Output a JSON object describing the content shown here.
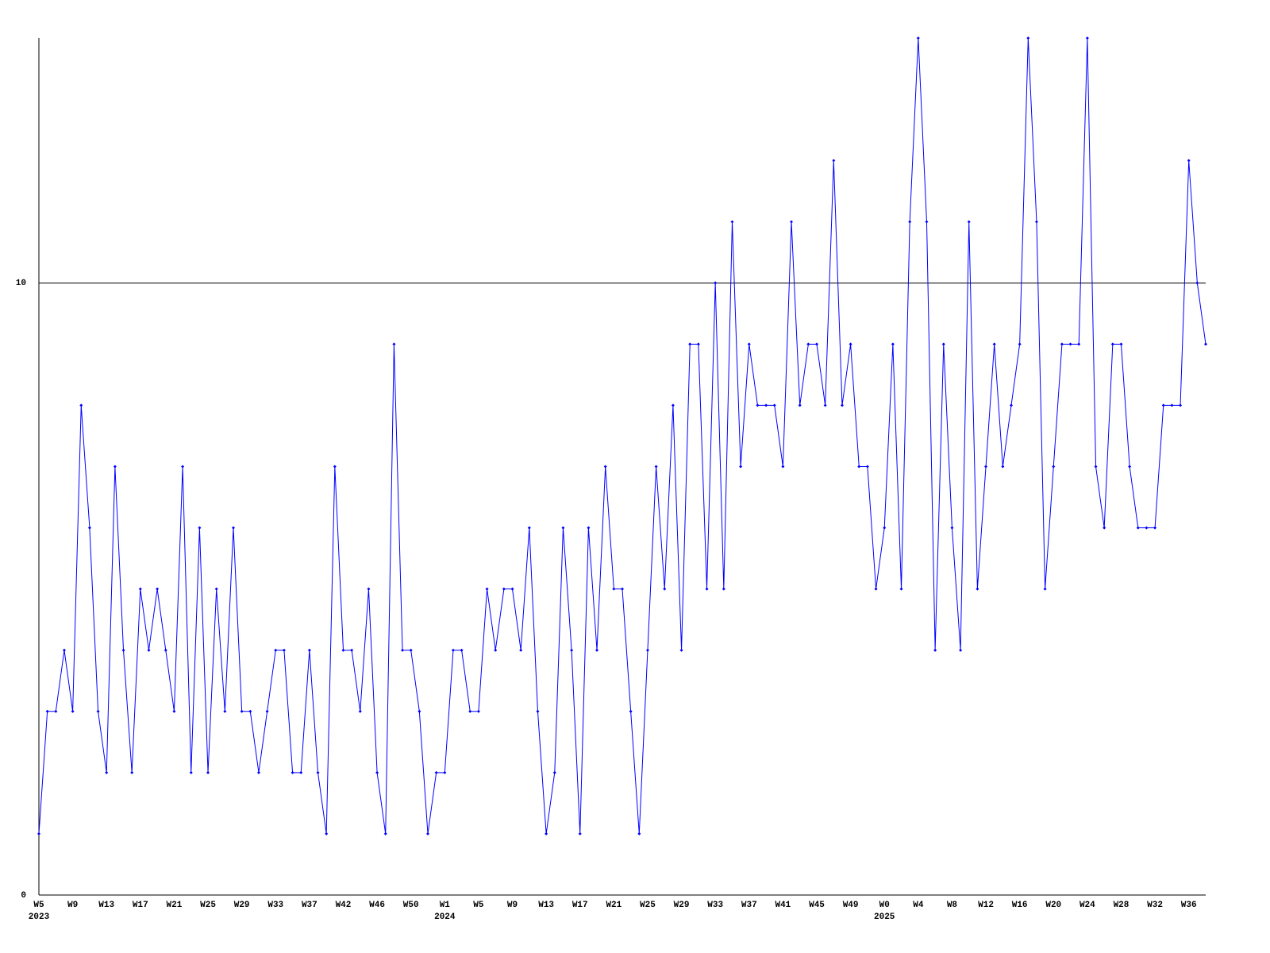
{
  "chart_data": {
    "type": "line",
    "categories": [
      "W5",
      null,
      null,
      null,
      "W9",
      null,
      null,
      null,
      "W13",
      null,
      null,
      null,
      "W17",
      null,
      null,
      null,
      "W21",
      null,
      null,
      null,
      "W25",
      null,
      null,
      null,
      "W29",
      null,
      null,
      null,
      "W33",
      null,
      null,
      null,
      "W37",
      null,
      null,
      null,
      "W42",
      null,
      null,
      null,
      "W46",
      null,
      null,
      null,
      "W50",
      null,
      null,
      null,
      "W1",
      null,
      null,
      null,
      "W5",
      null,
      null,
      null,
      "W9",
      null,
      null,
      null,
      "W13",
      null,
      null,
      null,
      "W17",
      null,
      null,
      null,
      "W21",
      null,
      null,
      null,
      "W25",
      null,
      null,
      null,
      "W29",
      null,
      null,
      null,
      "W33",
      null,
      null,
      null,
      "W37",
      null,
      null,
      null,
      "W41",
      null,
      null,
      null,
      "W45",
      null,
      null,
      null,
      "W49",
      null,
      null,
      null,
      "W0",
      null,
      null,
      null,
      "W4",
      null,
      null,
      null,
      "W8",
      null,
      null,
      null,
      "W12",
      null,
      null,
      null,
      "W16",
      null,
      null,
      null,
      "W20",
      null,
      null,
      null,
      "W24",
      null,
      null,
      null,
      "W28",
      null,
      null,
      null,
      "W32",
      null,
      null,
      null,
      "W36",
      null,
      null
    ],
    "years": [
      "2023",
      null,
      null,
      null,
      null,
      null,
      null,
      null,
      null,
      null,
      null,
      null,
      null,
      null,
      null,
      null,
      null,
      null,
      null,
      null,
      null,
      null,
      null,
      null,
      null,
      null,
      null,
      null,
      null,
      null,
      null,
      null,
      null,
      null,
      null,
      null,
      null,
      null,
      null,
      null,
      null,
      null,
      null,
      null,
      null,
      null,
      null,
      null,
      "2024",
      null,
      null,
      null,
      null,
      null,
      null,
      null,
      null,
      null,
      null,
      null,
      null,
      null,
      null,
      null,
      null,
      null,
      null,
      null,
      null,
      null,
      null,
      null,
      null,
      null,
      null,
      null,
      null,
      null,
      null,
      null,
      null,
      null,
      null,
      null,
      null,
      null,
      null,
      null,
      null,
      null,
      null,
      null,
      null,
      null,
      null,
      null,
      null,
      null,
      null,
      null,
      "2025",
      null,
      null,
      null,
      null,
      null,
      null,
      null,
      null,
      null,
      null,
      null,
      null,
      null,
      null,
      null,
      null,
      null,
      null,
      null,
      null,
      null,
      null,
      null,
      null,
      null,
      null,
      null,
      null,
      null,
      null,
      null,
      null,
      null,
      null,
      null,
      null,
      null,
      null
    ],
    "series": [
      {
        "color": "#0000ff",
        "values": [
          1,
          3,
          3,
          4,
          3,
          8,
          6,
          3,
          2,
          7,
          4,
          2,
          5,
          4,
          5,
          4,
          3,
          7,
          2,
          6,
          2,
          5,
          3,
          6,
          3,
          3,
          2,
          3,
          4,
          4,
          2,
          2,
          4,
          2,
          1,
          7,
          4,
          4,
          3,
          5,
          2,
          1,
          9,
          4,
          4,
          3,
          1,
          2,
          2,
          4,
          4,
          3,
          3,
          5,
          4,
          5,
          5,
          4,
          6,
          3,
          1,
          2,
          6,
          4,
          1,
          6,
          4,
          7,
          5,
          5,
          3,
          1,
          4,
          7,
          5,
          8,
          4,
          9,
          9,
          5,
          10,
          5,
          11,
          7,
          9,
          8,
          8,
          8,
          7,
          11,
          8,
          9,
          9,
          8,
          12,
          8,
          9,
          7,
          7,
          5,
          6,
          9,
          5,
          11,
          14,
          11,
          4,
          9,
          6,
          4,
          11,
          5,
          7,
          9,
          7,
          8,
          9,
          14,
          11,
          5,
          7,
          9,
          9,
          9,
          14,
          7,
          6,
          9,
          9,
          7,
          6,
          6,
          6,
          8,
          8,
          8,
          12,
          10,
          9
        ]
      }
    ],
    "ylim": [
      0,
      14
    ],
    "yticks": [
      0,
      10
    ],
    "grid": true
  }
}
